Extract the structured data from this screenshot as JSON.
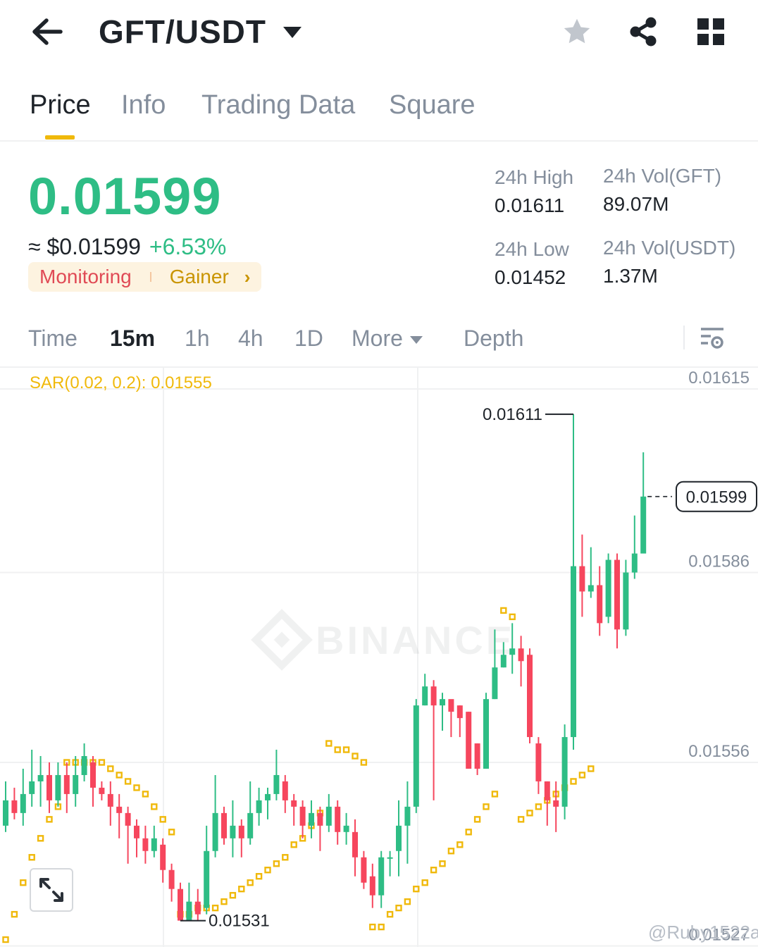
{
  "header": {
    "pair": "GFT/USDT",
    "back_icon": "arrow-left-icon",
    "dropdown_icon": "caret-down-icon",
    "favorite_icon": "star-icon",
    "share_icon": "share-icon",
    "grid_icon": "grid-icon"
  },
  "tabs": [
    {
      "label": "Price",
      "active": true
    },
    {
      "label": "Info",
      "active": false
    },
    {
      "label": "Trading Data",
      "active": false
    },
    {
      "label": "Square",
      "active": false
    }
  ],
  "price": {
    "last": "0.01599",
    "usd_approx": "≈ $0.01599",
    "change_pct": "+6.53%",
    "badge_monitoring": "Monitoring",
    "badge_gainer": "Gainer",
    "badge_chevron": "›"
  },
  "stats": {
    "high_label": "24h High",
    "high_value": "0.01611",
    "low_label": "24h Low",
    "low_value": "0.01452",
    "vol_base_label": "24h Vol(GFT)",
    "vol_base_value": "89.07M",
    "vol_quote_label": "24h Vol(USDT)",
    "vol_quote_value": "1.37M"
  },
  "intervals": {
    "time": "Time",
    "m15": "15m",
    "h1": "1h",
    "h4": "4h",
    "d1": "1D",
    "more": "More",
    "depth": "Depth",
    "settings_icon": "chart-settings-icon"
  },
  "chart": {
    "sar_label": "SAR(0.02, 0.2): 0.01555",
    "watermark": "BINANCE",
    "credit": "@Ruby1522a",
    "expand_icon": "expand-icon"
  },
  "chart_data": {
    "type": "candlestick",
    "indicator": "SAR(0.02, 0.2)",
    "y_ticks": [
      0.01615,
      0.01586,
      0.01556,
      0.01527
    ],
    "y_tick_labels": [
      "0.01615",
      "0.01586",
      "0.01556",
      "0.01527"
    ],
    "last_price_label": "0.01599",
    "high_annotation": "0.01611",
    "low_annotation": "0.01531",
    "colors": {
      "up": "#2ebd85",
      "down": "#f6465d",
      "sar": "#f0b90b",
      "grid": "#f0f1f2"
    },
    "candles": [
      [
        0.01546,
        0.0155,
        0.01553,
        0.01545
      ],
      [
        0.0155,
        0.01548,
        0.01552,
        0.01547
      ],
      [
        0.01548,
        0.01551,
        0.01555,
        0.01546
      ],
      [
        0.01551,
        0.01553,
        0.01558,
        0.01549
      ],
      [
        0.01553,
        0.01554,
        0.01557,
        0.01549
      ],
      [
        0.01554,
        0.0155,
        0.01556,
        0.01548
      ],
      [
        0.0155,
        0.01554,
        0.01556,
        0.01549
      ],
      [
        0.01554,
        0.01551,
        0.01556,
        0.01548
      ],
      [
        0.01551,
        0.01554,
        0.01557,
        0.01549
      ],
      [
        0.01554,
        0.01557,
        0.01559,
        0.01553
      ],
      [
        0.01556,
        0.01552,
        0.01557,
        0.01549
      ],
      [
        0.01552,
        0.01551,
        0.01553,
        0.0155
      ],
      [
        0.01551,
        0.01549,
        0.01553,
        0.01546
      ],
      [
        0.01549,
        0.01548,
        0.01551,
        0.01544
      ],
      [
        0.01548,
        0.01546,
        0.01549,
        0.0154
      ],
      [
        0.01546,
        0.01544,
        0.01547,
        0.01541
      ],
      [
        0.01544,
        0.01542,
        0.01546,
        0.0154
      ],
      [
        0.01542,
        0.01544,
        0.01546,
        0.01541
      ],
      [
        0.01543,
        0.01539,
        0.01544,
        0.01537
      ],
      [
        0.01539,
        0.01536,
        0.0154,
        0.01534
      ],
      [
        0.01536,
        0.01531,
        0.01537,
        0.01531
      ],
      [
        0.01531,
        0.01534,
        0.01537,
        0.01531
      ],
      [
        0.01534,
        0.01532,
        0.01536,
        0.01531
      ],
      [
        0.01533,
        0.01542,
        0.01546,
        0.01532
      ],
      [
        0.01542,
        0.01548,
        0.01554,
        0.01541
      ],
      [
        0.01548,
        0.01544,
        0.01549,
        0.01543
      ],
      [
        0.01544,
        0.01546,
        0.0155,
        0.01541
      ],
      [
        0.01546,
        0.01544,
        0.01547,
        0.01541
      ],
      [
        0.01544,
        0.01548,
        0.01553,
        0.01543
      ],
      [
        0.01548,
        0.0155,
        0.01552,
        0.01546
      ],
      [
        0.0155,
        0.01551,
        0.01552,
        0.01547
      ],
      [
        0.01551,
        0.01554,
        0.01558,
        0.0155
      ],
      [
        0.01553,
        0.0155,
        0.01554,
        0.01548
      ],
      [
        0.0155,
        0.01549,
        0.01551,
        0.01546
      ],
      [
        0.01549,
        0.01546,
        0.0155,
        0.01544
      ],
      [
        0.01546,
        0.01548,
        0.0155,
        0.01544
      ],
      [
        0.01548,
        0.01546,
        0.01549,
        0.01542
      ],
      [
        0.01546,
        0.01549,
        0.01551,
        0.01545
      ],
      [
        0.01549,
        0.01545,
        0.0155,
        0.01543
      ],
      [
        0.01545,
        0.01546,
        0.01548,
        0.01543
      ],
      [
        0.01545,
        0.01541,
        0.01547,
        0.01538
      ],
      [
        0.01541,
        0.01537,
        0.01542,
        0.01536
      ],
      [
        0.01538,
        0.01535,
        0.0154,
        0.01533
      ],
      [
        0.01535,
        0.01541,
        0.01542,
        0.01533
      ],
      [
        0.01541,
        0.01541,
        0.01542,
        0.01538
      ],
      [
        0.01542,
        0.01546,
        0.0155,
        0.01538
      ],
      [
        0.01546,
        0.01549,
        0.01553,
        0.0154
      ],
      [
        0.01549,
        0.01565,
        0.01566,
        0.01548
      ],
      [
        0.01565,
        0.01568,
        0.0157,
        0.01565
      ],
      [
        0.01568,
        0.01565,
        0.01569,
        0.0155
      ],
      [
        0.01565,
        0.01566,
        0.01567,
        0.01561
      ],
      [
        0.01566,
        0.01564,
        0.01565,
        0.0156
      ],
      [
        0.01565,
        0.01563,
        0.01565,
        0.0156
      ],
      [
        0.01564,
        0.01555,
        0.01564,
        0.01555
      ],
      [
        0.01559,
        0.01555,
        0.01559,
        0.01554
      ],
      [
        0.01555,
        0.01566,
        0.01567,
        0.01555
      ],
      [
        0.01566,
        0.01571,
        0.01577,
        0.01566
      ],
      [
        0.01571,
        0.01573,
        0.01575,
        0.01571
      ],
      [
        0.01573,
        0.01574,
        0.01578,
        0.0157
      ],
      [
        0.01574,
        0.01572,
        0.01576,
        0.01568
      ],
      [
        0.01573,
        0.0156,
        0.01574,
        0.01559
      ],
      [
        0.01559,
        0.01553,
        0.0156,
        0.01551
      ],
      [
        0.01553,
        0.0155,
        0.01553,
        0.01546
      ],
      [
        0.0155,
        0.01549,
        0.01553,
        0.01545
      ],
      [
        0.01549,
        0.0156,
        0.01562,
        0.01547
      ],
      [
        0.0156,
        0.01587,
        0.01611,
        0.01558
      ],
      [
        0.01587,
        0.01583,
        0.01592,
        0.01579
      ],
      [
        0.01583,
        0.01584,
        0.0159,
        0.01582
      ],
      [
        0.01584,
        0.01578,
        0.01587,
        0.01576
      ],
      [
        0.01579,
        0.01588,
        0.01589,
        0.01578
      ],
      [
        0.01588,
        0.01577,
        0.01589,
        0.01574
      ],
      [
        0.01577,
        0.01586,
        0.01588,
        0.01576
      ],
      [
        0.01586,
        0.01589,
        0.01595,
        0.01585
      ],
      [
        0.01589,
        0.01598,
        0.01605,
        0.01589
      ]
    ],
    "sar_points": [
      [
        0,
        0.01528
      ],
      [
        1,
        0.01532
      ],
      [
        2,
        0.01537
      ],
      [
        3,
        0.01541
      ],
      [
        4,
        0.01544
      ],
      [
        5,
        0.01547
      ],
      [
        6,
        0.01549
      ],
      [
        7,
        0.01556
      ],
      [
        8,
        0.01556
      ],
      [
        9,
        0.01556
      ],
      [
        10,
        0.01556
      ],
      [
        11,
        0.01556
      ],
      [
        12,
        0.01555
      ],
      [
        13,
        0.01554
      ],
      [
        14,
        0.01553
      ],
      [
        15,
        0.01552
      ],
      [
        16,
        0.01551
      ],
      [
        17,
        0.01549
      ],
      [
        18,
        0.01547
      ],
      [
        19,
        0.01545
      ],
      [
        20,
        0.01532
      ],
      [
        21,
        0.01532
      ],
      [
        22,
        0.01533
      ],
      [
        23,
        0.01533
      ],
      [
        24,
        0.01533
      ],
      [
        25,
        0.01534
      ],
      [
        26,
        0.01535
      ],
      [
        27,
        0.01536
      ],
      [
        28,
        0.01537
      ],
      [
        29,
        0.01538
      ],
      [
        30,
        0.01539
      ],
      [
        31,
        0.0154
      ],
      [
        32,
        0.01541
      ],
      [
        33,
        0.01543
      ],
      [
        34,
        0.01544
      ],
      [
        35,
        0.01546
      ],
      [
        36,
        0.01548
      ],
      [
        37,
        0.01559
      ],
      [
        38,
        0.01558
      ],
      [
        39,
        0.01558
      ],
      [
        40,
        0.01557
      ],
      [
        41,
        0.01556
      ],
      [
        42,
        0.0153
      ],
      [
        43,
        0.0153
      ],
      [
        44,
        0.01532
      ],
      [
        45,
        0.01533
      ],
      [
        46,
        0.01534
      ],
      [
        47,
        0.01536
      ],
      [
        48,
        0.01537
      ],
      [
        49,
        0.01539
      ],
      [
        50,
        0.0154
      ],
      [
        51,
        0.01542
      ],
      [
        52,
        0.01543
      ],
      [
        53,
        0.01545
      ],
      [
        54,
        0.01547
      ],
      [
        55,
        0.01549
      ],
      [
        56,
        0.01551
      ],
      [
        57,
        0.0158
      ],
      [
        58,
        0.01579
      ],
      [
        59,
        0.01547
      ],
      [
        60,
        0.01548
      ],
      [
        61,
        0.01549
      ],
      [
        62,
        0.0155
      ],
      [
        63,
        0.01551
      ],
      [
        64,
        0.01552
      ],
      [
        65,
        0.01553
      ],
      [
        66,
        0.01554
      ],
      [
        67,
        0.01555
      ]
    ]
  }
}
